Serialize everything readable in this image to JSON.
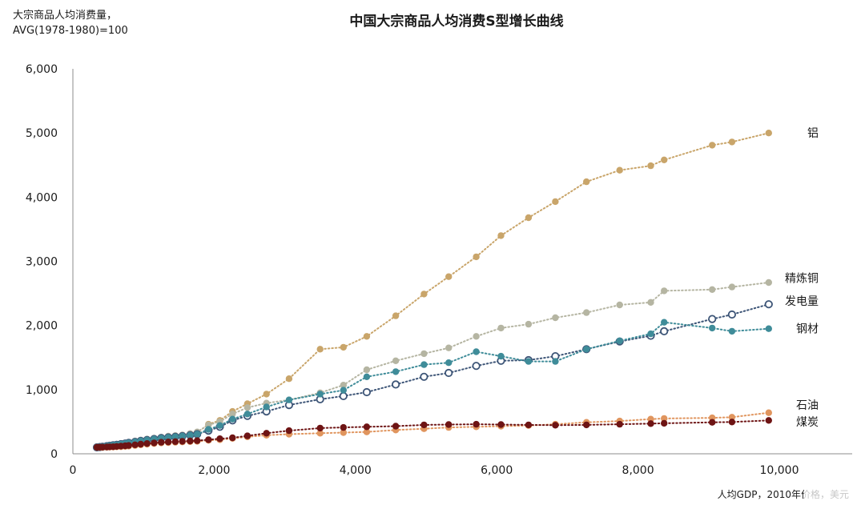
{
  "chart_data": {
    "type": "line",
    "title": "中国大宗商品人均消费S型增长曲线",
    "ylabel_lines": [
      "大宗商品人均消费量，",
      "AVG(1978-1980)=100"
    ],
    "xlabel": "人均GDP，2010年价格，美元",
    "xlim": [
      0,
      11000
    ],
    "ylim": [
      0,
      6000
    ],
    "xticks": [
      0,
      2000,
      4000,
      6000,
      8000,
      10000
    ],
    "xtick_labels": [
      "0",
      "2,000",
      "4,000",
      "6,000",
      "8,000",
      "10,000"
    ],
    "yticks": [
      0,
      1000,
      2000,
      3000,
      4000,
      5000,
      6000
    ],
    "ytick_labels": [
      "0",
      "1,000",
      "2,000",
      "3,000",
      "4,000",
      "5,000",
      "6,000"
    ],
    "grid": false,
    "legend": "labels at series ends (right)",
    "series": [
      {
        "name": "铝",
        "color": "#C9A56A",
        "marker": "filled",
        "x": [
          340,
          380,
          420,
          480,
          520,
          570,
          620,
          680,
          740,
          790,
          880,
          960,
          1050,
          1150,
          1250,
          1350,
          1450,
          1550,
          1660,
          1760,
          1920,
          2080,
          2260,
          2470,
          2740,
          3060,
          3500,
          3830,
          4160,
          4570,
          4970,
          5320,
          5710,
          6060,
          6450,
          6830,
          7270,
          7740,
          8180,
          8370,
          9050,
          9330,
          9850
        ],
        "y": [
          100,
          105,
          110,
          115,
          120,
          125,
          135,
          145,
          160,
          170,
          185,
          200,
          215,
          225,
          235,
          250,
          270,
          290,
          310,
          330,
          460,
          520,
          660,
          780,
          930,
          1170,
          1630,
          1660,
          1830,
          2150,
          2490,
          2760,
          3070,
          3400,
          3680,
          3930,
          4240,
          4420,
          4490,
          4580,
          4810,
          4860,
          5000
        ]
      },
      {
        "name": "精炼铜",
        "color": "#B5B5A2",
        "marker": "filled",
        "x": [
          340,
          380,
          420,
          480,
          520,
          570,
          620,
          680,
          740,
          790,
          880,
          960,
          1050,
          1150,
          1250,
          1350,
          1450,
          1550,
          1660,
          1760,
          1920,
          2080,
          2260,
          2470,
          2740,
          3060,
          3500,
          3830,
          4160,
          4570,
          4970,
          5320,
          5710,
          6060,
          6450,
          6830,
          7270,
          7740,
          8180,
          8370,
          9050,
          9330,
          9850
        ],
        "y": [
          100,
          105,
          110,
          120,
          130,
          140,
          150,
          160,
          170,
          180,
          200,
          215,
          230,
          245,
          260,
          275,
          285,
          295,
          315,
          340,
          450,
          500,
          620,
          720,
          790,
          840,
          950,
          1070,
          1310,
          1450,
          1560,
          1650,
          1830,
          1960,
          2020,
          2120,
          2200,
          2320,
          2360,
          2540,
          2560,
          2600,
          2670
        ]
      },
      {
        "name": "发电量",
        "color": "#3D5577",
        "marker": "hollow",
        "x": [
          340,
          380,
          420,
          480,
          520,
          570,
          620,
          680,
          740,
          790,
          880,
          960,
          1050,
          1150,
          1250,
          1350,
          1450,
          1550,
          1660,
          1760,
          1920,
          2080,
          2260,
          2470,
          2740,
          3060,
          3500,
          3830,
          4160,
          4570,
          4970,
          5320,
          5710,
          6060,
          6450,
          6830,
          7270,
          7740,
          8180,
          8370,
          9050,
          9330,
          9850
        ],
        "y": [
          100,
          105,
          110,
          118,
          125,
          132,
          140,
          150,
          160,
          170,
          185,
          200,
          215,
          230,
          245,
          255,
          265,
          275,
          290,
          305,
          360,
          420,
          520,
          590,
          660,
          760,
          850,
          900,
          960,
          1080,
          1200,
          1260,
          1370,
          1450,
          1460,
          1520,
          1630,
          1750,
          1840,
          1910,
          2100,
          2170,
          2330
        ]
      },
      {
        "name": "钢材",
        "color": "#3F8C99",
        "marker": "filled",
        "x": [
          340,
          380,
          420,
          480,
          520,
          570,
          620,
          680,
          740,
          790,
          880,
          960,
          1050,
          1150,
          1250,
          1350,
          1450,
          1550,
          1660,
          1760,
          1920,
          2080,
          2260,
          2470,
          2740,
          3060,
          3500,
          3830,
          4160,
          4570,
          4970,
          5320,
          5710,
          6060,
          6450,
          6830,
          7270,
          7740,
          8180,
          8370,
          9050,
          9330,
          9850
        ],
        "y": [
          100,
          105,
          110,
          118,
          125,
          132,
          140,
          150,
          160,
          170,
          185,
          200,
          215,
          230,
          245,
          255,
          265,
          275,
          290,
          305,
          380,
          440,
          540,
          620,
          730,
          840,
          930,
          990,
          1200,
          1280,
          1390,
          1420,
          1590,
          1520,
          1440,
          1440,
          1630,
          1760,
          1870,
          2050,
          1960,
          1910,
          1950
        ]
      },
      {
        "name": "石油",
        "color": "#E0955E",
        "marker": "filled",
        "x": [
          340,
          380,
          420,
          480,
          520,
          570,
          620,
          680,
          740,
          790,
          880,
          960,
          1050,
          1150,
          1250,
          1350,
          1450,
          1550,
          1660,
          1760,
          1920,
          2080,
          2260,
          2470,
          2740,
          3060,
          3500,
          3830,
          4160,
          4570,
          4970,
          5320,
          5710,
          6060,
          6450,
          6830,
          7270,
          7740,
          8180,
          8370,
          9050,
          9330,
          9850
        ],
        "y": [
          100,
          100,
          100,
          102,
          104,
          106,
          108,
          110,
          115,
          120,
          130,
          140,
          150,
          160,
          170,
          175,
          180,
          185,
          190,
          195,
          210,
          220,
          240,
          265,
          290,
          305,
          320,
          330,
          340,
          370,
          390,
          410,
          420,
          430,
          440,
          460,
          490,
          510,
          540,
          550,
          560,
          570,
          640
        ]
      },
      {
        "name": "煤炭",
        "color": "#6E1414",
        "marker": "filled",
        "x": [
          340,
          380,
          420,
          480,
          520,
          570,
          620,
          680,
          740,
          790,
          880,
          960,
          1050,
          1150,
          1250,
          1350,
          1450,
          1550,
          1660,
          1760,
          1920,
          2080,
          2260,
          2470,
          2740,
          3060,
          3500,
          3830,
          4160,
          4570,
          4970,
          5320,
          5710,
          6060,
          6450,
          6830,
          7270,
          7740,
          8180,
          8370,
          9050,
          9330,
          9850
        ],
        "y": [
          100,
          102,
          104,
          106,
          108,
          110,
          115,
          120,
          125,
          130,
          140,
          150,
          160,
          170,
          180,
          185,
          190,
          195,
          200,
          205,
          220,
          235,
          250,
          280,
          320,
          360,
          400,
          410,
          420,
          430,
          450,
          455,
          460,
          455,
          450,
          445,
          450,
          460,
          470,
          475,
          490,
          495,
          520
        ]
      }
    ],
    "end_labels": [
      {
        "series": "铝",
        "text": "铝",
        "y": 5000
      },
      {
        "series": "精炼铜",
        "text": "精炼铜",
        "y": 2740
      },
      {
        "series": "发电量",
        "text": "发电量",
        "y": 2380
      },
      {
        "series": "钢材",
        "text": "钢材",
        "y": 1950
      },
      {
        "series": "石油",
        "text": "石油",
        "y": 760
      },
      {
        "series": "煤炭",
        "text": "煤炭",
        "y": 500
      }
    ]
  }
}
